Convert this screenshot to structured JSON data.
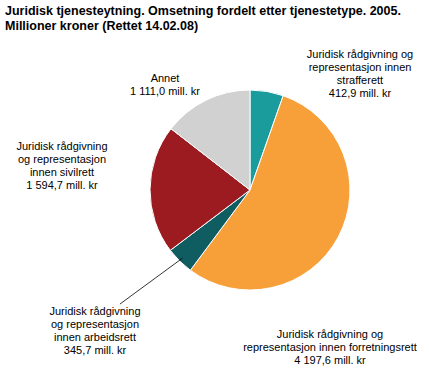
{
  "chart_data": {
    "type": "pie",
    "title": "Juridisk tjenesteytning. Omsetning fordelt etter tjenestetype. 2005. Millioner kroner (Rettet 14.02.08)",
    "categories": [
      "Juridisk rådgivning og representasjon innen strafferett",
      "Juridisk rådgivning og representasjon innen forretningsrett",
      "Juridisk rådgivning og representasjon innen arbeidsrett",
      "Juridisk rådgivning og representasjon innen sivilrett",
      "Annet"
    ],
    "values": [
      412.9,
      4197.6,
      345.7,
      1594.7,
      1111.0
    ],
    "value_labels": [
      "412,9 mill. kr",
      "4 197,6 mill. kr",
      "345,7 mill. kr",
      "1 594,7 mill. kr",
      "1 111,0 mill. kr"
    ],
    "colors": [
      "#1b9c9c",
      "#f7a03a",
      "#0f5c61",
      "#9b1b20",
      "#d1d1d1"
    ],
    "data_labels": true
  }
}
